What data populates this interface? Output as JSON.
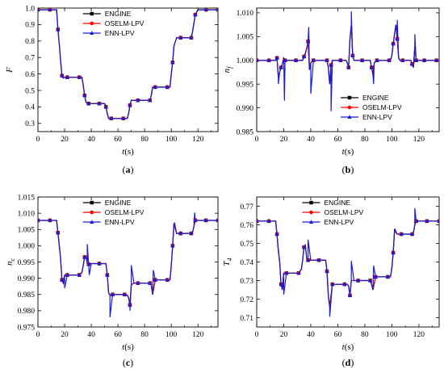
{
  "colors": {
    "ENGINE": "#000000",
    "OSELM-LPV": "#ff0000",
    "ENN-LPV": "#1a1ad8"
  },
  "chart_data": [
    {
      "type": "line",
      "caption_open": "(",
      "caption_letter": "a",
      "caption_close": ")",
      "ylabel": "F",
      "ylabel_sub": "",
      "xlabel": "t",
      "xlabel_unit": "(s)",
      "xlim": [
        0,
        135
      ],
      "ylim": [
        0.25,
        1.0
      ],
      "xticks": [
        0,
        20,
        40,
        60,
        80,
        100,
        120
      ],
      "yticks": [
        0.3,
        0.4,
        0.5,
        0.6,
        0.7,
        0.8,
        0.9,
        1.0
      ],
      "ytick_labels": [
        "0.3",
        "0.4",
        "0.5",
        "0.6",
        "0.7",
        "0.8",
        "0.9",
        "1.0"
      ],
      "legend_position": "top-center",
      "series": [
        {
          "name": "ENGINE",
          "marker": "square"
        },
        {
          "name": "OSELM-LPV",
          "marker": "circle"
        },
        {
          "name": "ENN-LPV",
          "marker": "triangle"
        }
      ],
      "x": [
        0,
        3,
        6,
        9,
        12,
        14,
        15,
        16,
        17,
        18,
        19,
        20,
        22,
        25,
        28,
        31,
        33,
        34,
        35,
        36,
        37,
        38,
        40,
        43,
        46,
        49,
        50,
        51,
        52,
        53,
        55,
        58,
        61,
        64,
        67,
        68,
        69,
        70,
        72,
        75,
        78,
        82,
        84,
        85,
        86,
        88,
        91,
        94,
        97,
        99,
        100,
        101,
        102,
        104,
        107,
        110,
        113,
        115,
        116,
        117,
        118,
        120,
        123,
        126,
        129,
        132,
        135
      ],
      "y": [
        0.99,
        0.99,
        0.99,
        0.99,
        0.99,
        0.99,
        0.87,
        0.78,
        0.68,
        0.59,
        0.575,
        0.58,
        0.58,
        0.58,
        0.58,
        0.58,
        0.58,
        0.53,
        0.47,
        0.43,
        0.42,
        0.42,
        0.42,
        0.42,
        0.42,
        0.42,
        0.42,
        0.4,
        0.36,
        0.33,
        0.33,
        0.33,
        0.33,
        0.33,
        0.33,
        0.36,
        0.41,
        0.44,
        0.44,
        0.44,
        0.44,
        0.44,
        0.44,
        0.47,
        0.52,
        0.52,
        0.52,
        0.52,
        0.52,
        0.52,
        0.6,
        0.67,
        0.77,
        0.82,
        0.82,
        0.82,
        0.82,
        0.82,
        0.86,
        0.91,
        0.96,
        0.99,
        0.99,
        0.99,
        0.99,
        0.99,
        0.99
      ],
      "enn_deviation": []
    },
    {
      "type": "line",
      "caption_open": "(",
      "caption_letter": "b",
      "caption_close": ")",
      "ylabel": "n",
      "ylabel_sub": "f",
      "xlabel": "t",
      "xlabel_unit": "(s)",
      "xlim": [
        0,
        135
      ],
      "ylim": [
        0.985,
        1.011
      ],
      "xticks": [
        0,
        20,
        40,
        60,
        80,
        100,
        120
      ],
      "yticks": [
        0.985,
        0.99,
        0.995,
        1.0,
        1.005,
        1.01
      ],
      "ytick_labels": [
        "0.985",
        "0.990",
        "0.995",
        "1.000",
        "1.005",
        "1.010"
      ],
      "legend_position": "bottom-right",
      "series": [
        {
          "name": "ENGINE",
          "marker": "square"
        },
        {
          "name": "OSELM-LPV",
          "marker": "circle"
        },
        {
          "name": "ENN-LPV",
          "marker": "triangle"
        }
      ],
      "x": [
        0,
        3,
        6,
        9,
        12,
        14,
        15,
        16,
        17,
        18,
        19,
        20,
        21,
        23,
        26,
        29,
        32,
        34,
        35,
        36,
        37,
        38,
        39,
        40,
        42,
        46,
        50,
        52,
        53,
        54,
        55,
        56,
        58,
        62,
        66,
        67,
        68,
        69,
        70,
        71,
        72,
        75,
        78,
        82,
        84,
        85,
        86,
        87,
        89,
        92,
        95,
        98,
        99,
        100,
        101,
        102,
        103,
        104,
        105,
        106,
        108,
        111,
        114,
        115,
        116,
        117,
        118,
        119,
        121,
        124,
        127,
        130,
        133,
        135
      ],
      "y": [
        1.0,
        1.0,
        1.0,
        1.0,
        1.0,
        1.0,
        1.0005,
        0.9965,
        0.9975,
        0.9985,
        0.9993,
        1.0005,
        1.0,
        1.0,
        1.0,
        1.0,
        1.0,
        1.0,
        1.0008,
        1.0015,
        1.0025,
        1.004,
        0.998,
        0.9995,
        1.0,
        1.0,
        1.0,
        1.0,
        0.9985,
        0.995,
        0.999,
        1.0,
        1.0,
        1.0,
        1.0,
        0.9995,
        0.9985,
        1.0045,
        1.0075,
        1.001,
        1.0,
        1.0,
        1.0,
        1.0,
        1.0,
        0.9985,
        0.997,
        0.9995,
        1.0,
        1.0,
        1.0,
        1.0,
        1.0,
        1.001,
        1.0035,
        1.0055,
        1.0075,
        1.0045,
        1.0005,
        1.0,
        1.0,
        1.0,
        1.0,
        0.9992,
        0.9985,
        1.003,
        1.0,
        1.0,
        1.0,
        1.0,
        1.0,
        1.0,
        1.0,
        1.0
      ],
      "enn_deviation": [
        {
          "x": 16,
          "y": 0.995
        },
        {
          "x": 20.5,
          "y": 0.9915
        },
        {
          "x": 38.5,
          "y": 1.007
        },
        {
          "x": 40,
          "y": 0.993
        },
        {
          "x": 55,
          "y": 0.9893
        },
        {
          "x": 70,
          "y": 1.0103
        },
        {
          "x": 86.5,
          "y": 0.995
        },
        {
          "x": 104,
          "y": 1.0085
        },
        {
          "x": 117,
          "y": 1.0055
        }
      ]
    },
    {
      "type": "line",
      "caption_open": "(",
      "caption_letter": "c",
      "caption_close": ")",
      "ylabel": "n",
      "ylabel_sub": "c",
      "xlabel": "t",
      "xlabel_unit": "(s)",
      "xlim": [
        0,
        135
      ],
      "ylim": [
        0.975,
        1.015
      ],
      "xticks": [
        0,
        20,
        40,
        60,
        80,
        100,
        120
      ],
      "yticks": [
        0.975,
        0.98,
        0.985,
        0.99,
        0.995,
        1.0,
        1.005,
        1.01,
        1.015
      ],
      "ytick_labels": [
        "0.975",
        "0.980",
        "0.985",
        "0.990",
        "0.995",
        "1.000",
        "1.005",
        "1.010",
        "1.015"
      ],
      "legend_position": "top-center",
      "series": [
        {
          "name": "ENGINE",
          "marker": "square"
        },
        {
          "name": "OSELM-LPV",
          "marker": "circle"
        },
        {
          "name": "ENN-LPV",
          "marker": "triangle"
        }
      ],
      "x": [
        0,
        3,
        6,
        9,
        12,
        14,
        15,
        16,
        17,
        18,
        19,
        20,
        22,
        25,
        28,
        31,
        33,
        34,
        35,
        36,
        37,
        38,
        40,
        43,
        46,
        49,
        51,
        52,
        53,
        54,
        56,
        59,
        62,
        65,
        67,
        68,
        69,
        70,
        72,
        75,
        78,
        82,
        84,
        85,
        86,
        88,
        91,
        94,
        97,
        99,
        100,
        101,
        102,
        104,
        107,
        110,
        113,
        115,
        116,
        117,
        118,
        120,
        123,
        126,
        129,
        132,
        135
      ],
      "y": [
        1.0078,
        1.0078,
        1.0078,
        1.0078,
        1.0078,
        1.0078,
        1.004,
        1.0,
        0.996,
        0.9895,
        0.9885,
        0.991,
        0.991,
        0.991,
        0.991,
        0.991,
        0.9918,
        0.994,
        0.9965,
        0.9968,
        0.9945,
        0.9943,
        0.9945,
        0.9945,
        0.9945,
        0.9945,
        0.9945,
        0.991,
        0.9855,
        0.9848,
        0.985,
        0.985,
        0.985,
        0.985,
        0.9848,
        0.984,
        0.9818,
        0.988,
        0.9885,
        0.9885,
        0.9885,
        0.9885,
        0.9885,
        0.9878,
        0.985,
        0.9895,
        0.9895,
        0.9895,
        0.9895,
        0.9895,
        0.994,
        1.0,
        1.0068,
        1.0038,
        1.0038,
        1.0038,
        1.0038,
        1.0038,
        1.0042,
        1.006,
        1.0078,
        1.0078,
        1.0078,
        1.0078,
        1.0078,
        1.0078,
        1.0078
      ],
      "enn_deviation": [
        {
          "x": 20,
          "y": 0.987
        },
        {
          "x": 37,
          "y": 1.0005
        },
        {
          "x": 38.5,
          "y": 0.991
        },
        {
          "x": 54,
          "y": 0.978
        },
        {
          "x": 70,
          "y": 0.994
        },
        {
          "x": 69,
          "y": 0.98
        },
        {
          "x": 86.5,
          "y": 0.9925
        },
        {
          "x": 102.5,
          "y": 1.007
        },
        {
          "x": 117.5,
          "y": 1.0102
        }
      ]
    },
    {
      "type": "line",
      "caption_open": "(",
      "caption_letter": "d",
      "caption_close": ")",
      "ylabel": "T",
      "ylabel_sub": "4",
      "xlabel": "t",
      "xlabel_unit": "(s)",
      "xlim": [
        0,
        135
      ],
      "ylim": [
        0.705,
        0.775
      ],
      "xticks": [
        0,
        20,
        40,
        60,
        80,
        100,
        120
      ],
      "yticks": [
        0.71,
        0.72,
        0.73,
        0.74,
        0.75,
        0.76,
        0.77
      ],
      "ytick_labels": [
        "0.71",
        "0.72",
        "0.73",
        "0.74",
        "0.75",
        "0.76",
        "0.77"
      ],
      "legend_position": "top-center",
      "series": [
        {
          "name": "ENGINE",
          "marker": "square"
        },
        {
          "name": "OSELM-LPV",
          "marker": "circle"
        },
        {
          "name": "ENN-LPV",
          "marker": "triangle"
        }
      ],
      "x": [
        0,
        3,
        6,
        9,
        12,
        14,
        15,
        16,
        17,
        18,
        19,
        20,
        22,
        25,
        28,
        31,
        33,
        34,
        35,
        36,
        37,
        38,
        40,
        43,
        46,
        49,
        51,
        52,
        53,
        54,
        56,
        59,
        62,
        65,
        67,
        68,
        69,
        70,
        72,
        75,
        78,
        82,
        84,
        85,
        86,
        88,
        91,
        94,
        97,
        99,
        100,
        101,
        102,
        104,
        107,
        110,
        113,
        115,
        116,
        117,
        118,
        120,
        123,
        126,
        129,
        132,
        135
      ],
      "y": [
        0.762,
        0.762,
        0.762,
        0.762,
        0.762,
        0.762,
        0.755,
        0.746,
        0.74,
        0.728,
        0.725,
        0.734,
        0.734,
        0.734,
        0.734,
        0.734,
        0.736,
        0.741,
        0.748,
        0.749,
        0.742,
        0.741,
        0.741,
        0.741,
        0.741,
        0.741,
        0.741,
        0.735,
        0.722,
        0.716,
        0.728,
        0.728,
        0.728,
        0.728,
        0.728,
        0.727,
        0.722,
        0.73,
        0.73,
        0.73,
        0.73,
        0.73,
        0.73,
        0.728,
        0.725,
        0.732,
        0.732,
        0.732,
        0.732,
        0.732,
        0.737,
        0.745,
        0.757,
        0.755,
        0.755,
        0.755,
        0.755,
        0.755,
        0.756,
        0.76,
        0.762,
        0.762,
        0.762,
        0.762,
        0.762,
        0.762,
        0.762
      ],
      "enn_deviation": [
        {
          "x": 16,
          "y": 0.747
        },
        {
          "x": 20,
          "y": 0.7225
        },
        {
          "x": 38,
          "y": 0.752
        },
        {
          "x": 54,
          "y": 0.7105
        },
        {
          "x": 70,
          "y": 0.7405
        },
        {
          "x": 86.5,
          "y": 0.738
        },
        {
          "x": 102,
          "y": 0.758
        },
        {
          "x": 117,
          "y": 0.769
        }
      ]
    }
  ]
}
